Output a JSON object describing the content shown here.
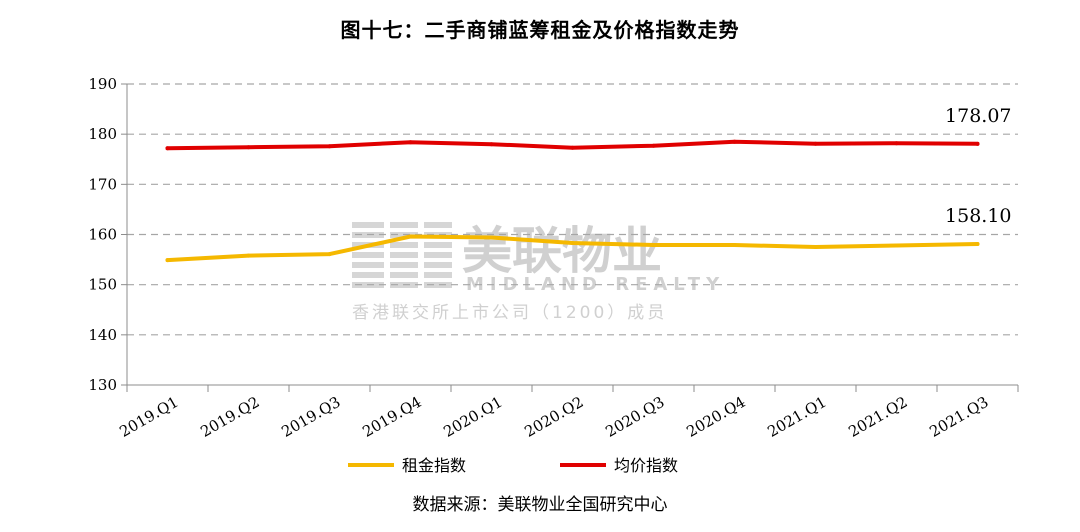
{
  "chart_data": {
    "type": "line",
    "title": "图十七：二手商铺蓝筹租金及价格指数走势",
    "categories": [
      "2019.Q1",
      "2019.Q2",
      "2019.Q3",
      "2019.Q4",
      "2020.Q1",
      "2020.Q2",
      "2020.Q3",
      "2020.Q4",
      "2021.Q1",
      "2021.Q2",
      "2021.Q3"
    ],
    "series": [
      {
        "name": "租金指数",
        "color": "#f5b800",
        "values": [
          154.9,
          155.8,
          156.1,
          159.6,
          159.4,
          158.3,
          157.9,
          157.9,
          157.5,
          157.8,
          158.1
        ]
      },
      {
        "name": "均价指数",
        "color": "#e00000",
        "values": [
          177.2,
          177.4,
          177.6,
          178.4,
          178.0,
          177.3,
          177.7,
          178.5,
          178.1,
          178.2,
          178.07
        ]
      }
    ],
    "end_labels": [
      "158.10",
      "178.07"
    ],
    "y_ticks": [
      "130",
      "140",
      "150",
      "160",
      "170",
      "180",
      "190"
    ],
    "ylim": [
      130,
      190
    ],
    "grid": true,
    "legend_position": "bottom-center",
    "source": "数据来源：美联物业全国研究中心",
    "watermark": {
      "brand": "美联物业",
      "english": "MIDLAND REALTY",
      "subtitle": "香港联交所上市公司（1200）成员"
    }
  }
}
